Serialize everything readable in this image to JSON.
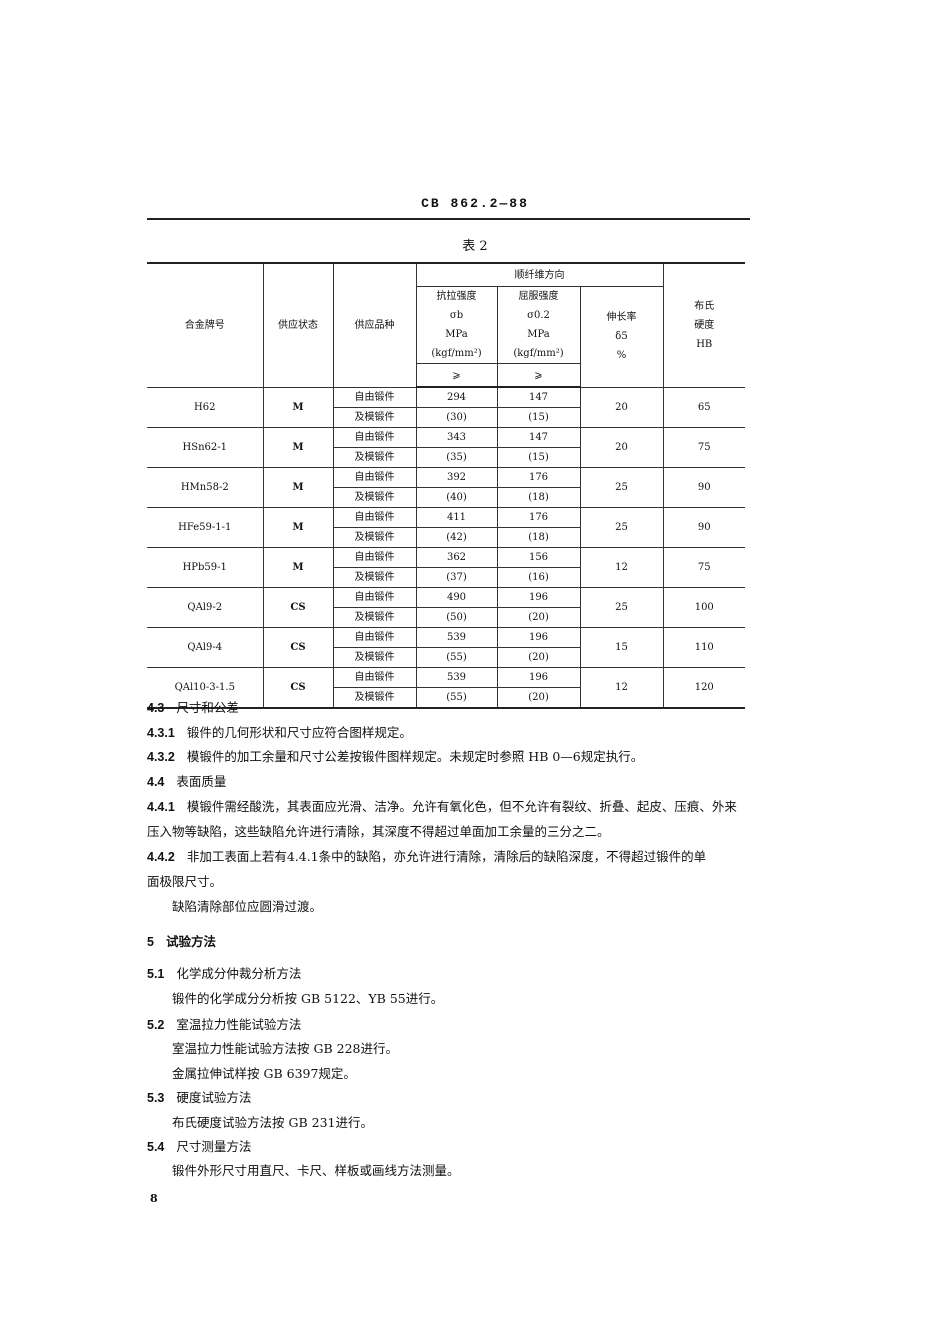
{
  "header": "CB 862.2—88",
  "table_caption": "表 2",
  "table": {
    "headers": {
      "alloy": "合金牌号",
      "state": "供应状态",
      "variety": "供应品种",
      "group": "顺纤维方向",
      "tensile": [
        "抗拉强度",
        "σb",
        "MPa",
        "(kgf/mm²)"
      ],
      "yield": [
        "屈服强度",
        "σ0.2",
        "MPa",
        "(kgf/mm²)"
      ],
      "ge": "⩾",
      "elong": [
        "伸长率",
        "δ5",
        "%"
      ],
      "hb": [
        "布氏",
        "硬度",
        "HB"
      ]
    },
    "variety_lines": [
      "自由锻件",
      "及模锻件"
    ],
    "rows": [
      {
        "alloy": "H62",
        "state": "M",
        "tensile": "294",
        "tensile_kgf": "(30)",
        "yield": "147",
        "yield_kgf": "(15)",
        "elong": "20",
        "hb": "65"
      },
      {
        "alloy": "HSn62-1",
        "state": "M",
        "tensile": "343",
        "tensile_kgf": "(35)",
        "yield": "147",
        "yield_kgf": "(15)",
        "elong": "20",
        "hb": "75"
      },
      {
        "alloy": "HMn58-2",
        "state": "M",
        "tensile": "392",
        "tensile_kgf": "(40)",
        "yield": "176",
        "yield_kgf": "(18)",
        "elong": "25",
        "hb": "90"
      },
      {
        "alloy": "HFe59-1-1",
        "state": "M",
        "tensile": "411",
        "tensile_kgf": "(42)",
        "yield": "176",
        "yield_kgf": "(18)",
        "elong": "25",
        "hb": "90"
      },
      {
        "alloy": "HPb59-1",
        "state": "M",
        "tensile": "362",
        "tensile_kgf": "(37)",
        "yield": "156",
        "yield_kgf": "(16)",
        "elong": "12",
        "hb": "75"
      },
      {
        "alloy": "QAl9-2",
        "state": "CS",
        "tensile": "490",
        "tensile_kgf": "(50)",
        "yield": "196",
        "yield_kgf": "(20)",
        "elong": "25",
        "hb": "100"
      },
      {
        "alloy": "QAl9-4",
        "state": "CS",
        "tensile": "539",
        "tensile_kgf": "(55)",
        "yield": "196",
        "yield_kgf": "(20)",
        "elong": "15",
        "hb": "110"
      },
      {
        "alloy": "QAl10-3-1.5",
        "state": "CS",
        "tensile": "539",
        "tensile_kgf": "(55)",
        "yield": "196",
        "yield_kgf": "(20)",
        "elong": "12",
        "hb": "120"
      }
    ]
  },
  "text": [
    {
      "num": "4.3",
      "text": "尺寸和公差"
    },
    {
      "num": "4.3.1",
      "text": "锻件的几何形状和尺寸应符合图样规定。"
    },
    {
      "num": "4.3.2",
      "text": "模锻件的加工余量和尺寸公差按锻件图样规定。未规定时参照 HB 0—6规定执行。"
    },
    {
      "num": "4.4",
      "text": "表面质量"
    },
    {
      "num": "4.4.1",
      "text": "模锻件需经酸洗，其表面应光滑、洁净。允许有氧化色，但不允许有裂纹、折叠、起皮、压痕、外来"
    },
    {
      "num": "",
      "text": "压入物等缺陷，这些缺陷允许进行清除，其深度不得超过单面加工余量的三分之二。"
    },
    {
      "num": "4.4.2",
      "text": "非加工表面上若有4.4.1条中的缺陷，亦允许进行清除，清除后的缺陷深度，不得超过锻件的单"
    },
    {
      "num": "",
      "text": "面极限尺寸。"
    },
    {
      "num": "",
      "text": "缺陷清除部位应圆滑过渡。",
      "indent": true
    },
    {
      "num": "5",
      "text": "试验方法",
      "bold": true
    },
    {
      "num": "5.1",
      "text": "化学成分仲裁分析方法"
    },
    {
      "num": "",
      "text": "锻件的化学成分分析按 GB 5122、YB 55进行。",
      "indent": true
    },
    {
      "num": "5.2",
      "text": "室温拉力性能试验方法"
    },
    {
      "num": "",
      "text": "室温拉力性能试验方法按 GB 228进行。",
      "indent": true
    },
    {
      "num": "",
      "text": "金属拉伸试样按 GB 6397规定。",
      "indent": true
    },
    {
      "num": "5.3",
      "text": "硬度试验方法"
    },
    {
      "num": "",
      "text": "布氏硬度试验方法按 GB 231进行。",
      "indent": true
    },
    {
      "num": "5.4",
      "text": "尺寸测量方法"
    },
    {
      "num": "",
      "text": "锻件外形尺寸用直尺、卡尺、样板或画线方法测量。",
      "indent": true
    }
  ],
  "page_number": "8"
}
